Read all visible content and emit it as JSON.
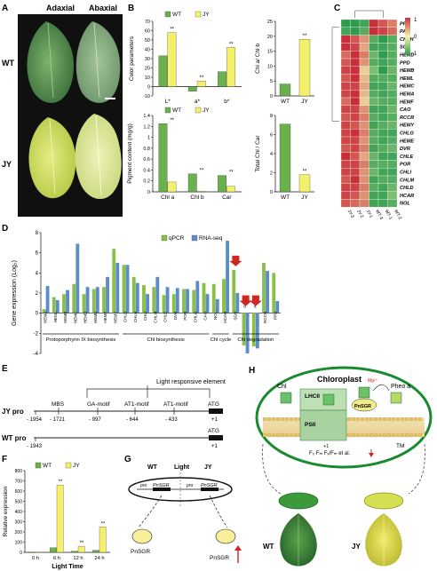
{
  "panels": {
    "A": {
      "letter": "A",
      "adaxial": "Adaxial",
      "abaxial": "Abaxial",
      "rows": [
        "WT",
        "JY"
      ]
    },
    "B": {
      "letter": "B",
      "legend": [
        "WT",
        "JY"
      ],
      "colors": {
        "WT": "#6ab04c",
        "JY": "#f4f06a"
      }
    },
    "C": {
      "letter": "C",
      "legend_ticks": [
        "1",
        "0",
        "-1"
      ],
      "genes": [
        "PPH",
        "PAO",
        "CHLH",
        "SGR",
        "HEMD",
        "PPD",
        "HEMB",
        "HEML",
        "HEMC",
        "HEMA",
        "HEMF",
        "CAO",
        "RCCR",
        "HEMY",
        "CHLG",
        "HEME",
        "DVR",
        "CHLE",
        "POR",
        "CHLI",
        "CHLM",
        "CHLD",
        "HCAR",
        "NOL"
      ],
      "samples": [
        "JY-3",
        "JY-2",
        "JY-1",
        "WT-3",
        "WT-1",
        "WT-2"
      ],
      "colors": {
        "high": "#c7303a",
        "mid": "#f7f3ad",
        "low": "#2e9b4c"
      }
    },
    "D": {
      "letter": "D",
      "legend": [
        "qPCR",
        "RNA-seq"
      ],
      "ylabel": "Gene expression (Log₂)",
      "groups": [
        "Protoporphyrin IX biosynthesis",
        "Chl biosynthesis",
        "Chl cycle",
        "Chl degradation"
      ],
      "colors": {
        "qPCR": "#8cbf4a",
        "RNA-seq": "#5b8ec9",
        "arrow": "#d0261f"
      }
    },
    "E": {
      "letter": "E",
      "title": "Light responsive element",
      "jy_label": "JY pro",
      "wt_label": "WT pro",
      "jy_positions": [
        "- 1954",
        "- 1721",
        "- 997",
        "- 644",
        "- 433",
        "+1"
      ],
      "jy_motifs": [
        "MBS",
        "GA-motif",
        "AT1-motif",
        "AT1-motif",
        "ATG"
      ],
      "wt_positions": [
        "- 1943",
        "+1"
      ],
      "wt_motif": "ATG"
    },
    "F": {
      "letter": "F",
      "legend": [
        "WT",
        "JY"
      ],
      "ylabel": "Relative expression",
      "xlabel": "Light Time",
      "sig": "**"
    },
    "G": {
      "letter": "G",
      "labels": [
        "WT",
        "Light",
        "JY"
      ],
      "gene": "PnSGR",
      "promoter": "pro",
      "protein": "PnSGR"
    },
    "H": {
      "letter": "H",
      "title": "Chloroplast",
      "labels": [
        "Chl",
        "LHCII",
        "Pheo a",
        "PSII",
        "PnSGR",
        "TM",
        "+1"
      ],
      "mg": "Mg²⁺",
      "params": "F₀ Fₘ Fᵥ/Fₘ et al.",
      "bottom": [
        "WT",
        "JY"
      ]
    }
  },
  "chart_data": [
    {
      "type": "bar",
      "title": "",
      "ylabel": "Color parameters",
      "categories": [
        "L*",
        "a*",
        "b*"
      ],
      "series": [
        {
          "name": "WT",
          "values": [
            33,
            -5,
            16
          ]
        },
        {
          "name": "JY",
          "values": [
            58,
            6,
            42
          ]
        }
      ],
      "ylim": [
        -10,
        70
      ],
      "yticks": [
        -10,
        0,
        10,
        20,
        30,
        40,
        50,
        60,
        70
      ],
      "sig": [
        "**",
        "**",
        "**"
      ]
    },
    {
      "type": "bar",
      "ylabel": "Chl a/ Chl b",
      "categories": [
        "WT",
        "JY"
      ],
      "values": [
        4,
        19
      ],
      "ylim": [
        0,
        25
      ],
      "yticks": [
        0,
        5,
        10,
        15,
        20,
        25
      ],
      "sig": [
        "",
        "**"
      ]
    },
    {
      "type": "bar",
      "ylabel": "Pigment content (mg/g)",
      "categories": [
        "Chl a",
        "Chl b",
        "Car"
      ],
      "series": [
        {
          "name": "WT",
          "values": [
            1.25,
            0.33,
            0.3
          ]
        },
        {
          "name": "JY",
          "values": [
            0.18,
            0.01,
            0.1
          ]
        }
      ],
      "ylim": [
        0,
        1.4
      ],
      "yticks": [
        0.0,
        0.2,
        0.4,
        0.6,
        0.8,
        1.0,
        1.2,
        1.4
      ],
      "sig": [
        "**",
        "**",
        "**"
      ]
    },
    {
      "type": "bar",
      "ylabel": "Total Chl / Car",
      "categories": [
        "WT",
        "JY"
      ],
      "values": [
        7.1,
        1.8
      ],
      "ylim": [
        0,
        8
      ],
      "yticks": [
        0,
        2,
        4,
        6,
        8
      ],
      "sig": [
        "",
        "**"
      ]
    },
    {
      "type": "heatmap",
      "rows": [
        "PPH",
        "PAO",
        "CHLH",
        "SGR",
        "HEMD",
        "PPD",
        "HEMB",
        "HEML",
        "HEMC",
        "HEMA",
        "HEMF",
        "CAO",
        "RCCR",
        "HEMY",
        "CHLG",
        "HEME",
        "DVR",
        "CHLE",
        "POR",
        "CHLI",
        "CHLM",
        "CHLD",
        "HCAR",
        "NOL"
      ],
      "columns": [
        "JY-3",
        "JY-2",
        "JY-1",
        "WT-3",
        "WT-1",
        "WT-2"
      ],
      "values": [
        [
          -1.0,
          -1.0,
          -0.9,
          1.0,
          0.8,
          0.6
        ],
        [
          -0.9,
          -1.0,
          -0.8,
          1.0,
          0.9,
          0.7
        ],
        [
          1.0,
          0.8,
          0.5,
          -0.8,
          -1.0,
          -0.8
        ],
        [
          1.0,
          0.9,
          0.4,
          -0.9,
          -0.9,
          -0.8
        ],
        [
          0.7,
          1.0,
          0.6,
          -0.7,
          -1.0,
          -0.8
        ],
        [
          0.8,
          1.0,
          0.5,
          -0.8,
          -0.9,
          -0.8
        ],
        [
          0.9,
          1.0,
          0.2,
          -0.6,
          -1.0,
          -0.7
        ],
        [
          0.8,
          1.0,
          0.3,
          -0.8,
          -0.8,
          -0.8
        ],
        [
          0.9,
          0.9,
          0.4,
          -0.9,
          -0.9,
          -0.7
        ],
        [
          0.9,
          1.0,
          0.3,
          -0.8,
          -0.9,
          -0.8
        ],
        [
          0.7,
          1.0,
          0.2,
          -0.7,
          -0.8,
          -0.8
        ],
        [
          0.9,
          0.9,
          0.5,
          -0.9,
          -0.9,
          -0.7
        ],
        [
          0.8,
          0.9,
          0.6,
          -0.8,
          -0.9,
          -0.8
        ],
        [
          0.9,
          0.8,
          0.5,
          -0.9,
          -0.8,
          -0.7
        ],
        [
          0.9,
          1.0,
          0.6,
          -0.8,
          -0.9,
          -0.9
        ],
        [
          0.9,
          0.9,
          0.5,
          -0.8,
          -0.9,
          -0.8
        ],
        [
          0.8,
          0.9,
          0.6,
          -0.9,
          -0.8,
          -0.7
        ],
        [
          1.0,
          0.8,
          0.4,
          -0.7,
          -0.9,
          -0.9
        ],
        [
          0.9,
          0.9,
          0.6,
          -0.8,
          -0.8,
          -0.8
        ],
        [
          0.9,
          0.9,
          0.5,
          -0.7,
          -0.9,
          -0.9
        ],
        [
          0.8,
          1.0,
          0.5,
          -0.9,
          -0.8,
          -0.8
        ],
        [
          0.9,
          0.9,
          0.6,
          -0.8,
          -0.9,
          -0.7
        ],
        [
          0.9,
          0.8,
          0.5,
          -0.9,
          -0.9,
          -0.6
        ],
        [
          0.8,
          0.7,
          0.6,
          -0.9,
          -0.9,
          -0.8
        ]
      ]
    },
    {
      "type": "bar",
      "ylabel": "Gene expression (Log₂)",
      "categories": [
        "HEMA",
        "HEML",
        "HEMB",
        "HEMC",
        "HEMD",
        "HEME",
        "HEMF",
        "HEMY",
        "CHLD",
        "CHLH",
        "CHLI",
        "CHLM",
        "CHLE",
        "DVR",
        "POR",
        "CHLG",
        "CAO",
        "NOL",
        "HCAR",
        "SGR",
        "PPH",
        "PAO",
        "RCCR",
        "PPD"
      ],
      "series": [
        {
          "name": "qPCR",
          "values": [
            0.4,
            1.6,
            1.9,
            2.9,
            1.9,
            2.4,
            2.6,
            6.4,
            4.8,
            3.6,
            2.8,
            2.6,
            1.8,
            1.9,
            2.4,
            2.3,
            3.0,
            2.9,
            3.4,
            4.3,
            -3.2,
            -3.3,
            5.0,
            4.0
          ]
        },
        {
          "name": "RNA-seq",
          "values": [
            2.7,
            1.3,
            2.3,
            6.9,
            2.6,
            2.6,
            3.6,
            5.0,
            4.8,
            3.0,
            1.9,
            3.6,
            2.6,
            2.5,
            2.4,
            3.2,
            1.9,
            1.4,
            7.2,
            2.0,
            -4.0,
            -3.5,
            4.2,
            1.2
          ]
        }
      ],
      "ylim": [
        -4,
        8
      ],
      "yticks": [
        -4,
        -2,
        0,
        2,
        4,
        6,
        8
      ],
      "arrows": [
        "SGR",
        "PPH",
        "PAO"
      ]
    },
    {
      "type": "bar",
      "ylabel": "Relative expression",
      "xlabel": "Light Time",
      "categories": [
        "0 h",
        "6 h",
        "12 h",
        "24 h"
      ],
      "series": [
        {
          "name": "WT",
          "values": [
            1,
            45,
            12,
            20
          ]
        },
        {
          "name": "JY",
          "values": [
            1,
            660,
            60,
            250
          ]
        }
      ],
      "ylim": [
        0,
        800
      ],
      "yticks": [
        0,
        100,
        200,
        300,
        400,
        500,
        600,
        700,
        800
      ],
      "sig": [
        "",
        "**",
        "**",
        "**"
      ]
    }
  ]
}
